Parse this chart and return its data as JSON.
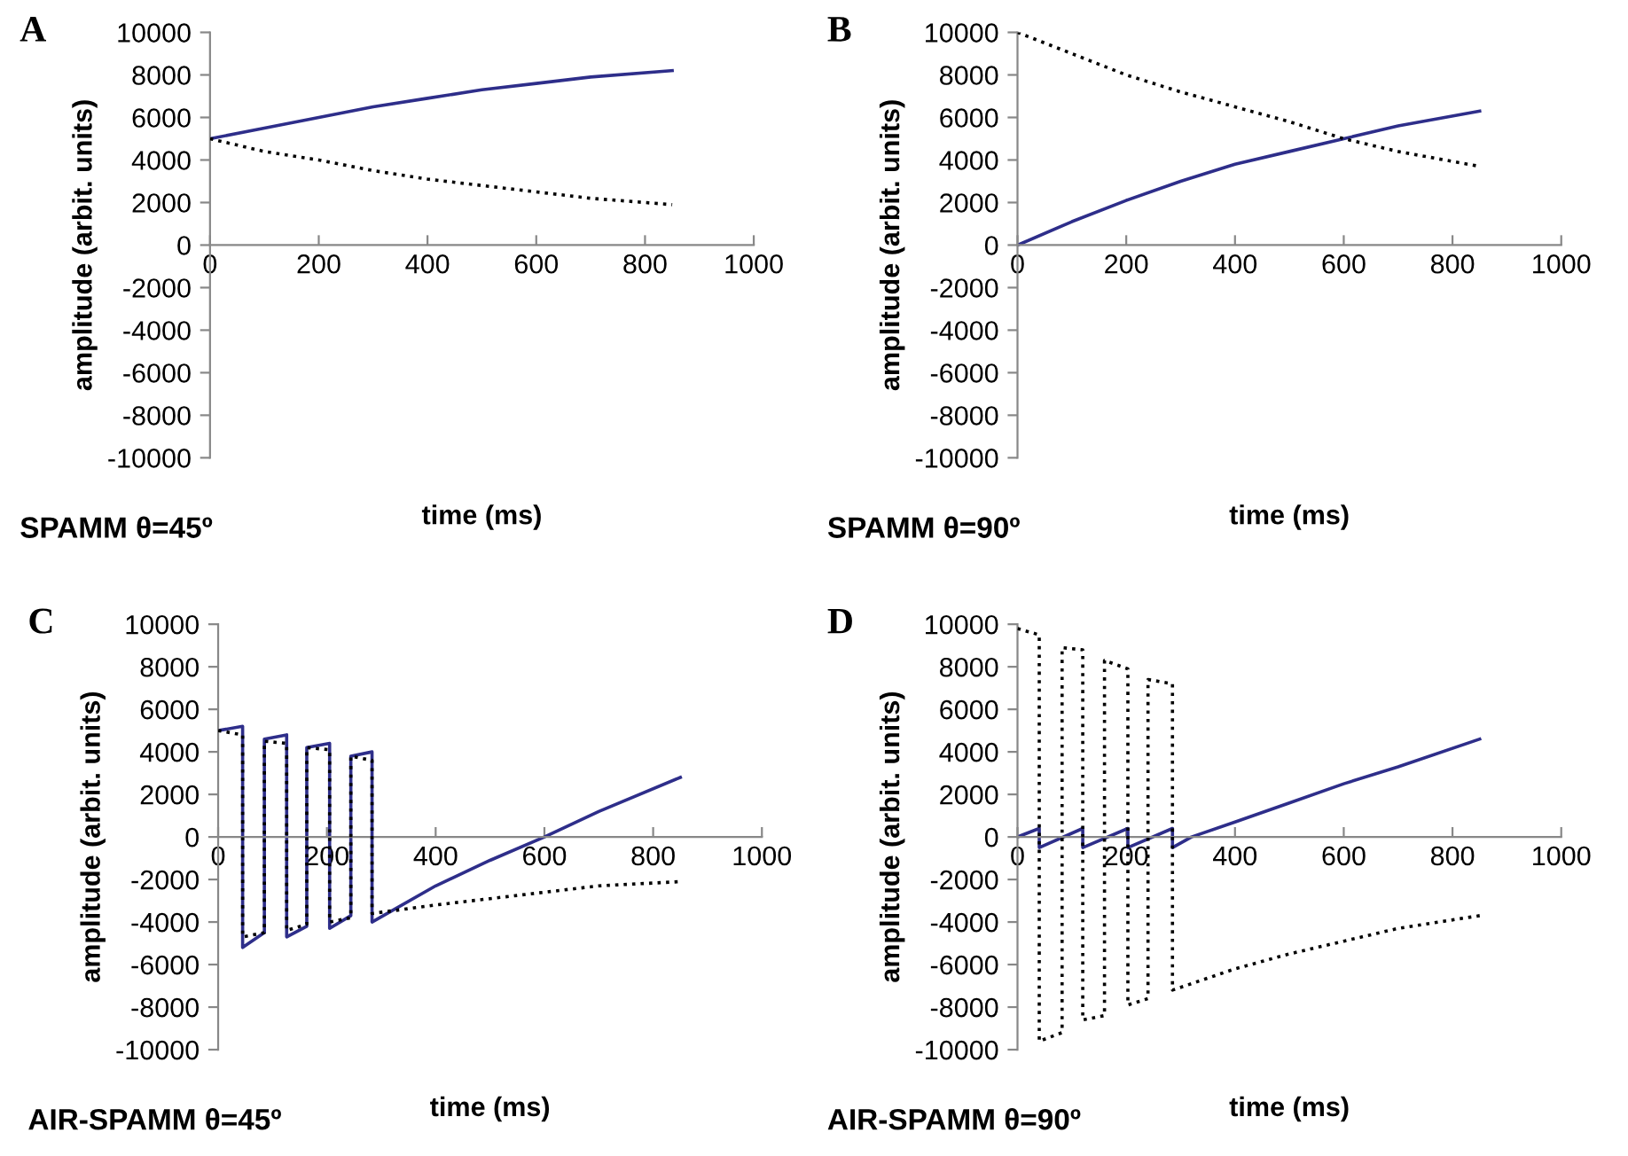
{
  "chart_data": [
    {
      "type": "line",
      "title": "A",
      "xlabel": "time (ms)",
      "ylabel": "amplitude (arbit. units)",
      "annotations": [
        "SPAMM θ=45º"
      ],
      "xlim": [
        0,
        1000
      ],
      "ylim": [
        -10000,
        10000
      ],
      "xticks": [
        0,
        200,
        400,
        600,
        800,
        1000
      ],
      "yticks": [
        -10000,
        -8000,
        -6000,
        -4000,
        -2000,
        0,
        2000,
        4000,
        6000,
        8000,
        10000
      ],
      "grid": false,
      "marker": "none",
      "series": [
        {
          "color": "#2e2e8a",
          "line_style": "solid",
          "x": [
            0,
            100,
            200,
            300,
            400,
            500,
            600,
            700,
            850
          ],
          "values": [
            5000,
            5500,
            6000,
            6500,
            6900,
            7300,
            7600,
            7900,
            8200
          ]
        },
        {
          "color": "#000000",
          "line_style": "dotted",
          "x": [
            0,
            100,
            200,
            300,
            400,
            500,
            600,
            700,
            850
          ],
          "values": [
            5000,
            4400,
            4000,
            3500,
            3100,
            2800,
            2500,
            2200,
            1900
          ]
        }
      ]
    },
    {
      "type": "line",
      "title": "B",
      "xlabel": "time (ms)",
      "ylabel": "amplitude (arbit. units)",
      "annotations": [
        "SPAMM θ=90º"
      ],
      "xlim": [
        0,
        1000
      ],
      "ylim": [
        -10000,
        10000
      ],
      "xticks": [
        0,
        200,
        400,
        600,
        800,
        1000
      ],
      "yticks": [
        -10000,
        -8000,
        -6000,
        -4000,
        -2000,
        0,
        2000,
        4000,
        6000,
        8000,
        10000
      ],
      "grid": false,
      "marker": "none",
      "series": [
        {
          "color": "#2e2e8a",
          "line_style": "solid",
          "x": [
            0,
            100,
            200,
            300,
            400,
            500,
            600,
            700,
            850
          ],
          "values": [
            0,
            1100,
            2100,
            3000,
            3800,
            4400,
            5000,
            5600,
            6300
          ]
        },
        {
          "color": "#000000",
          "line_style": "dotted",
          "x": [
            0,
            100,
            200,
            300,
            400,
            500,
            600,
            700,
            850
          ],
          "values": [
            10000,
            9000,
            8000,
            7200,
            6500,
            5800,
            5000,
            4400,
            3700
          ]
        }
      ]
    },
    {
      "type": "line",
      "title": "C",
      "xlabel": "time (ms)",
      "ylabel": "amplitude (arbit. units)",
      "annotations": [
        "AIR-SPAMM θ=45º"
      ],
      "xlim": [
        0,
        1000
      ],
      "ylim": [
        -10000,
        10000
      ],
      "xticks": [
        0,
        200,
        400,
        600,
        800,
        1000
      ],
      "yticks": [
        -10000,
        -8000,
        -6000,
        -4000,
        -2000,
        0,
        2000,
        4000,
        6000,
        8000,
        10000
      ],
      "grid": false,
      "marker": "none",
      "series": [
        {
          "color": "#000000",
          "line_style": "dotted",
          "x": [
            0,
            45,
            45,
            85,
            85,
            126,
            126,
            163,
            163,
            205,
            205,
            244,
            244,
            283,
            283,
            400,
            500,
            600,
            700,
            850
          ],
          "values": [
            5000,
            4800,
            -4700,
            -4500,
            4500,
            4400,
            -4400,
            -4100,
            4200,
            4100,
            -4000,
            -3800,
            3800,
            3600,
            -3600,
            -3200,
            -2900,
            -2600,
            -2300,
            -2100
          ]
        },
        {
          "color": "#2e2e8a",
          "line_style": "solid",
          "x": [
            0,
            45,
            45,
            85,
            85,
            126,
            126,
            163,
            163,
            205,
            205,
            244,
            244,
            283,
            283,
            400,
            500,
            600,
            700,
            850
          ],
          "values": [
            5000,
            5200,
            -5200,
            -4500,
            4600,
            4800,
            -4700,
            -4200,
            4200,
            4400,
            -4300,
            -3700,
            3800,
            4000,
            -4000,
            -2300,
            -1100,
            0,
            1200,
            2800
          ]
        }
      ]
    },
    {
      "type": "line",
      "title": "D",
      "xlabel": "time (ms)",
      "ylabel": "amplitude (arbit. units)",
      "annotations": [
        "AIR-SPAMM θ=90º"
      ],
      "xlim": [
        0,
        1000
      ],
      "ylim": [
        -10000,
        10000
      ],
      "xticks": [
        0,
        200,
        400,
        600,
        800,
        1000
      ],
      "yticks": [
        -10000,
        -8000,
        -6000,
        -4000,
        -2000,
        0,
        2000,
        4000,
        6000,
        8000,
        10000
      ],
      "grid": false,
      "marker": "none",
      "series": [
        {
          "color": "#000000",
          "line_style": "dotted",
          "x": [
            0,
            40,
            40,
            82,
            82,
            120,
            120,
            160,
            160,
            203,
            203,
            240,
            240,
            285,
            285,
            400,
            500,
            600,
            700,
            850
          ],
          "values": [
            9800,
            9500,
            -9600,
            -9200,
            8900,
            8800,
            -8600,
            -8400,
            8300,
            7900,
            -7900,
            -7600,
            7400,
            7200,
            -7200,
            -6200,
            -5500,
            -4900,
            -4300,
            -3700
          ]
        },
        {
          "color": "#2e2e8a",
          "line_style": "solid",
          "x": [
            0,
            40,
            40,
            120,
            120,
            203,
            203,
            285,
            285,
            320,
            400,
            500,
            600,
            700,
            850
          ],
          "values": [
            0,
            400,
            -500,
            400,
            -500,
            400,
            -500,
            400,
            -500,
            0,
            700,
            1600,
            2500,
            3300,
            4600
          ]
        }
      ]
    }
  ]
}
